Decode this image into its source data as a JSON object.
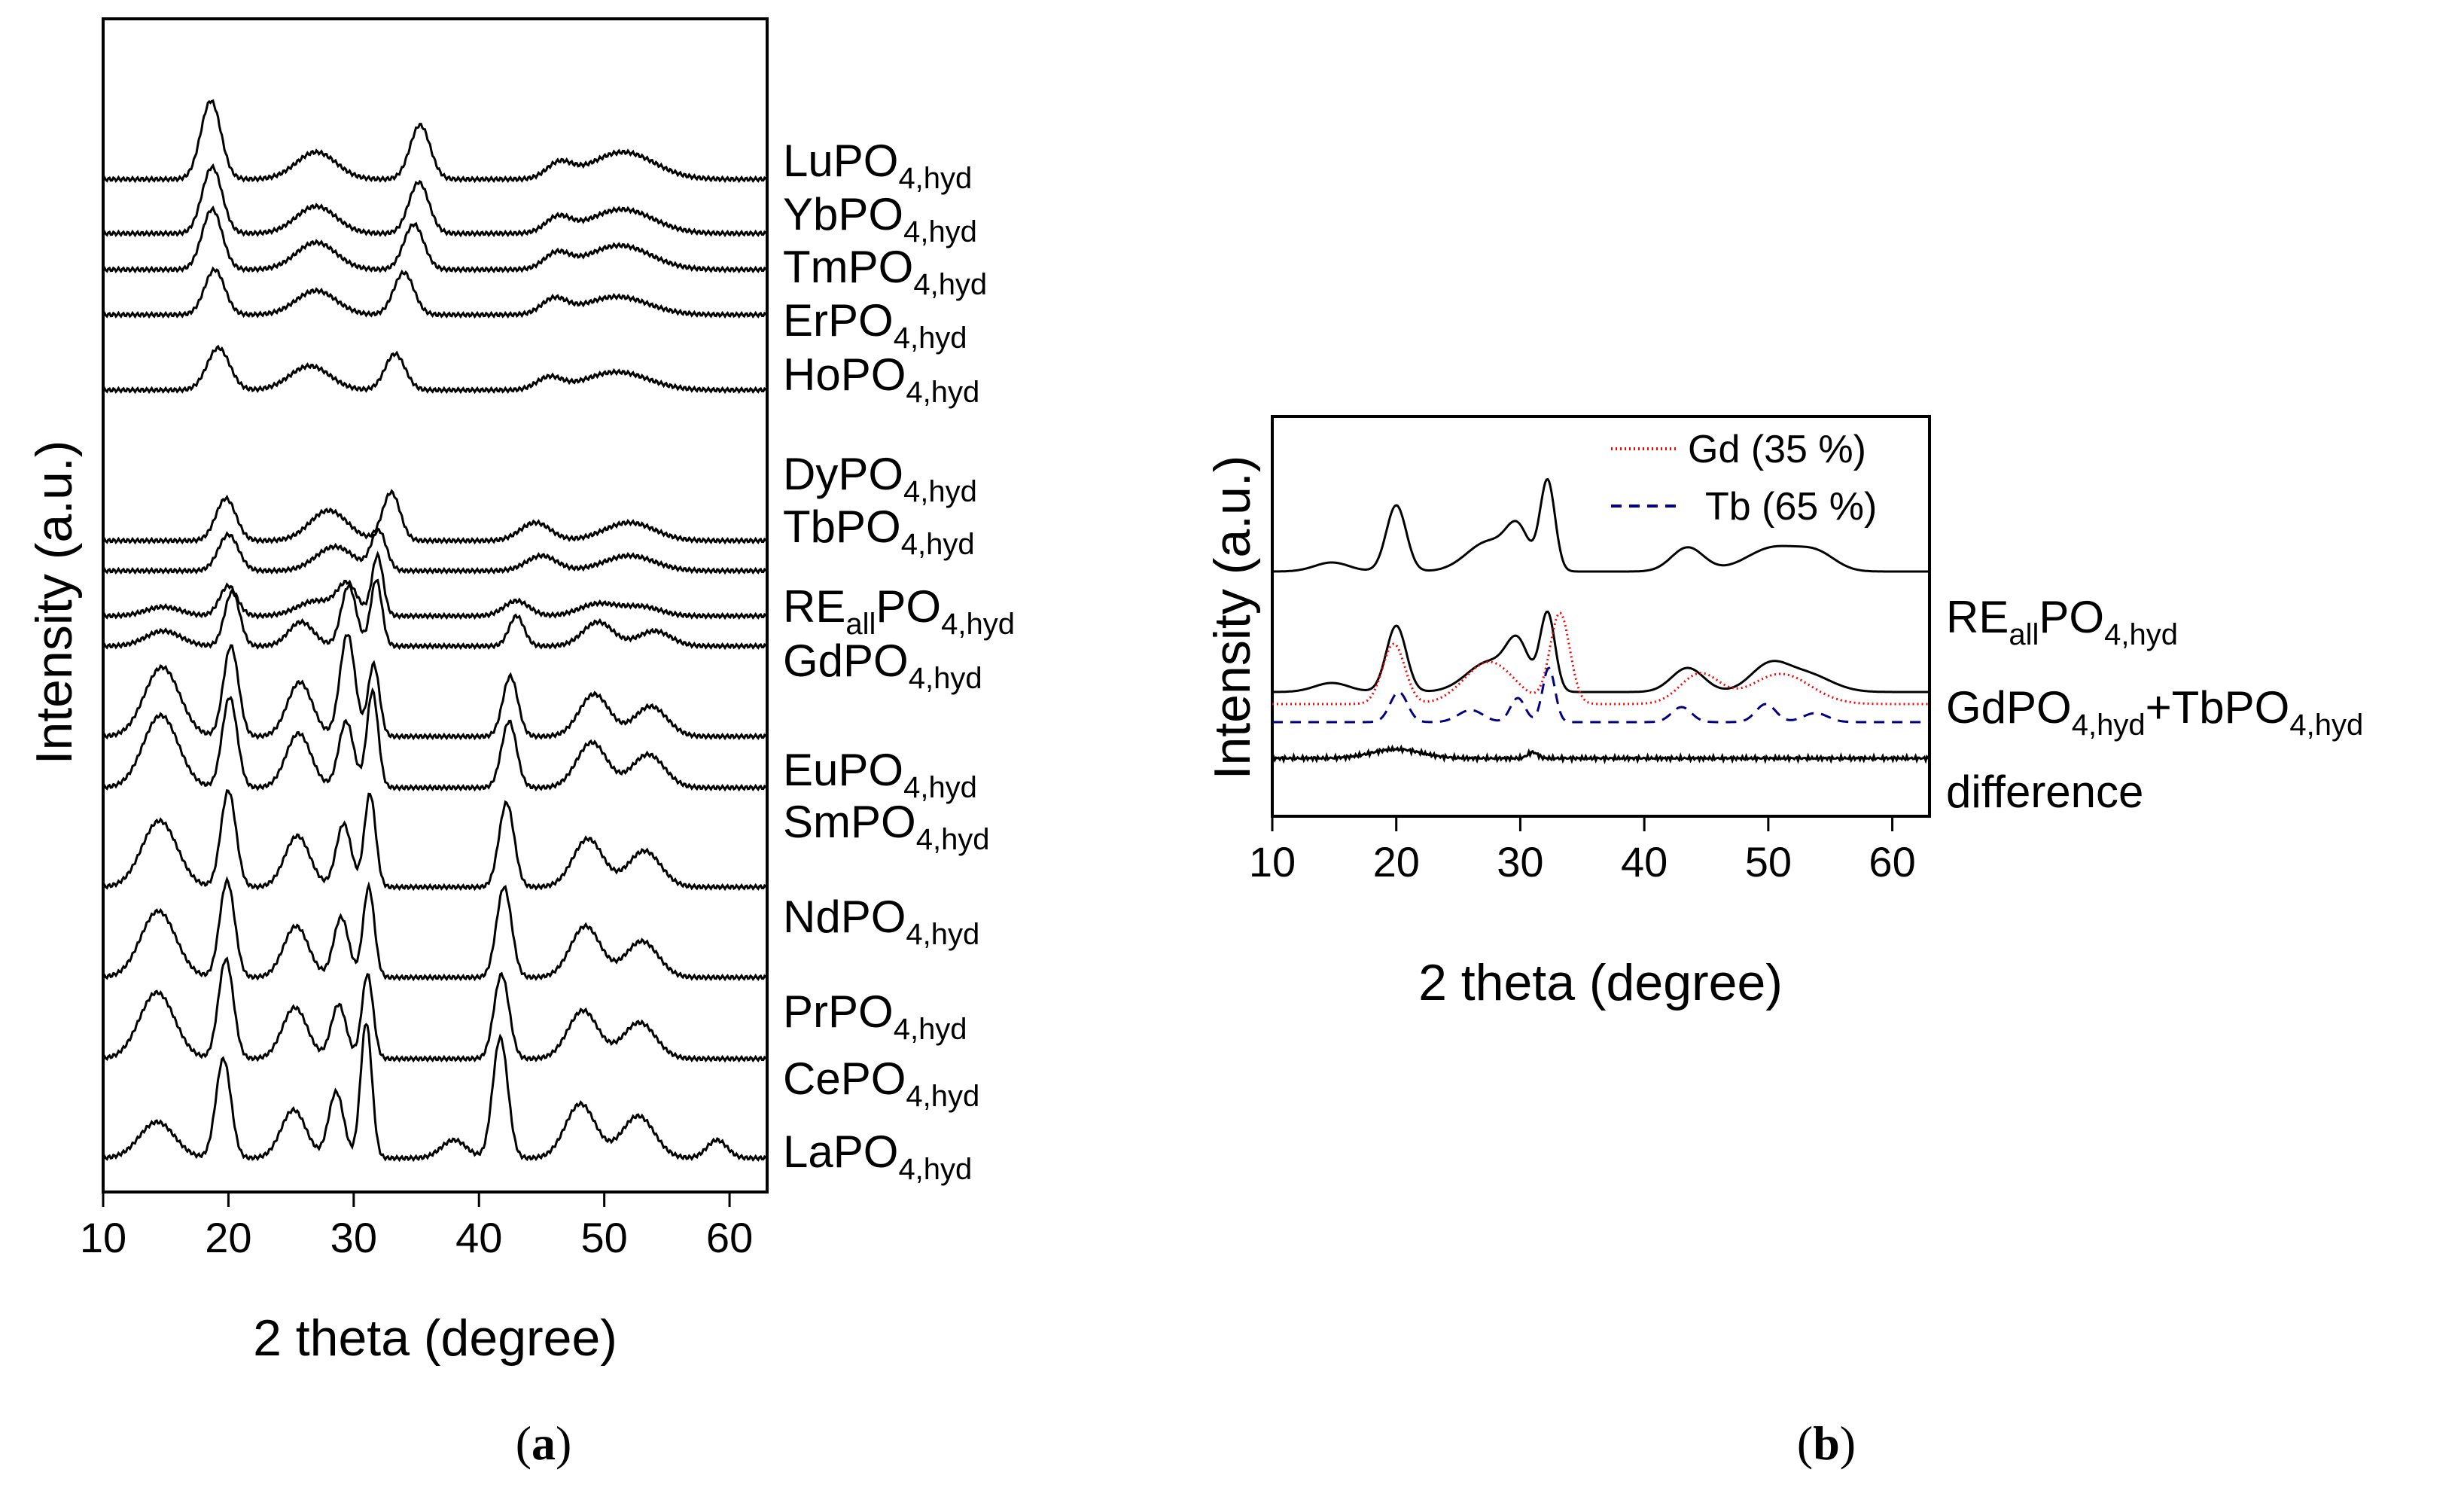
{
  "chart_data": [
    {
      "panel_label": "(a)",
      "panel_open": "(",
      "panel_letter": "a",
      "panel_close": ")",
      "type": "line",
      "xlabel": "2 theta (degree)",
      "ylabel": "Intensity (a.u.)",
      "xlim": [
        10,
        63
      ],
      "xticks": [
        "10",
        "20",
        "30",
        "40",
        "50",
        "60"
      ],
      "series": [
        {
          "name": "LaPO4,hyd",
          "base": "LaPO",
          "sub": "4,hyd",
          "pre": "",
          "offset": 0.0,
          "peaks": [
            [
              14.3,
              0.12,
              1.4
            ],
            [
              19.6,
              0.33,
              0.6
            ],
            [
              25.2,
              0.16,
              1.0
            ],
            [
              28.6,
              0.22,
              0.6
            ],
            [
              31.0,
              0.45,
              0.45
            ],
            [
              38.0,
              0.06,
              1.0
            ],
            [
              41.7,
              0.4,
              0.6
            ],
            [
              48.1,
              0.18,
              1.2
            ],
            [
              52.7,
              0.14,
              1.3
            ],
            [
              59.0,
              0.06,
              0.8
            ]
          ]
        },
        {
          "name": "CePO4,hyd",
          "base": "CePO",
          "sub": "4,hyd",
          "pre": "",
          "offset": 0.33,
          "peaks": [
            [
              14.3,
              0.22,
              1.4
            ],
            [
              19.8,
              0.33,
              0.6
            ],
            [
              25.3,
              0.17,
              1.0
            ],
            [
              28.8,
              0.18,
              0.6
            ],
            [
              31.1,
              0.28,
              0.45
            ],
            [
              41.8,
              0.28,
              0.6
            ],
            [
              48.3,
              0.16,
              1.2
            ],
            [
              52.8,
              0.12,
              1.3
            ]
          ]
        },
        {
          "name": "PrPO4,hyd",
          "base": "PrPO",
          "sub": "4,hyd",
          "pre": "",
          "offset": 0.6,
          "peaks": [
            [
              14.4,
              0.22,
              1.4
            ],
            [
              19.9,
              0.32,
              0.6
            ],
            [
              25.4,
              0.17,
              1.0
            ],
            [
              29.0,
              0.2,
              0.6
            ],
            [
              31.2,
              0.3,
              0.45
            ],
            [
              42.0,
              0.3,
              0.6
            ],
            [
              48.5,
              0.17,
              1.2
            ],
            [
              53.0,
              0.12,
              1.3
            ]
          ]
        },
        {
          "name": "NdPO4,hyd",
          "base": "NdPO",
          "sub": "4,hyd",
          "pre": "",
          "offset": 0.9,
          "peaks": [
            [
              14.5,
              0.22,
              1.4
            ],
            [
              20.0,
              0.32,
              0.6
            ],
            [
              25.5,
              0.17,
              1.0
            ],
            [
              29.2,
              0.21,
              0.6
            ],
            [
              31.3,
              0.31,
              0.45
            ],
            [
              42.2,
              0.28,
              0.6
            ],
            [
              48.7,
              0.16,
              1.2
            ],
            [
              53.2,
              0.12,
              1.3
            ]
          ]
        },
        {
          "name": "SmPO4,hyd",
          "base": "SmPO",
          "sub": "4,hyd",
          "pre": "",
          "offset": 1.23,
          "peaks": [
            [
              14.6,
              0.24,
              1.4
            ],
            [
              20.1,
              0.3,
              0.6
            ],
            [
              25.6,
              0.18,
              1.0
            ],
            [
              29.4,
              0.22,
              0.6
            ],
            [
              31.5,
              0.32,
              0.45
            ],
            [
              42.4,
              0.22,
              0.6
            ],
            [
              49.0,
              0.15,
              1.2
            ],
            [
              53.5,
              0.11,
              1.3
            ]
          ]
        },
        {
          "name": "EuPO4,hyd",
          "base": "EuPO",
          "sub": "4,hyd",
          "pre": "",
          "offset": 1.4,
          "peaks": [
            [
              14.7,
              0.23,
              1.4
            ],
            [
              20.2,
              0.3,
              0.6
            ],
            [
              25.7,
              0.18,
              1.0
            ],
            [
              29.5,
              0.34,
              0.6
            ],
            [
              31.6,
              0.24,
              0.45
            ],
            [
              42.5,
              0.2,
              0.6
            ],
            [
              49.2,
              0.14,
              1.2
            ],
            [
              53.7,
              0.1,
              1.3
            ]
          ]
        },
        {
          "name": "GdPO4,hyd",
          "base": "GdPO",
          "sub": "4,hyd",
          "pre": "",
          "offset": 1.7,
          "peaks": [
            [
              14.8,
              0.05,
              1.4
            ],
            [
              20.3,
              0.18,
              0.6
            ],
            [
              25.8,
              0.08,
              1.0
            ],
            [
              29.6,
              0.2,
              0.6
            ],
            [
              31.8,
              0.22,
              0.45
            ],
            [
              43.0,
              0.1,
              0.6
            ],
            [
              49.5,
              0.08,
              1.2
            ],
            [
              54.0,
              0.05,
              1.3
            ]
          ]
        },
        {
          "name": "REallPO4,hyd",
          "base": "RE",
          "sub": "4,hyd",
          "pre": "all",
          "mid": "PO",
          "offset": 1.8,
          "peaks": [
            [
              14.8,
              0.03,
              1.4
            ],
            [
              20.0,
              0.1,
              0.7
            ],
            [
              27.0,
              0.05,
              1.5
            ],
            [
              29.5,
              0.1,
              0.8
            ],
            [
              31.9,
              0.2,
              0.45
            ],
            [
              43.0,
              0.05,
              1.0
            ],
            [
              49.5,
              0.04,
              1.5
            ],
            [
              53.0,
              0.03,
              1.5
            ]
          ]
        },
        {
          "name": "TbPO4,hyd",
          "base": "TbPO",
          "sub": "4,hyd",
          "pre": "",
          "offset": 1.95,
          "peaks": [
            [
              20.0,
              0.12,
              0.8
            ],
            [
              28.5,
              0.08,
              1.5
            ],
            [
              32.0,
              0.13,
              0.6
            ],
            [
              45.0,
              0.05,
              1.2
            ],
            [
              52.0,
              0.05,
              2.0
            ]
          ]
        },
        {
          "name": "DyPO4,hyd",
          "base": "DyPO",
          "sub": "4,hyd",
          "pre": "",
          "offset": 2.05,
          "peaks": [
            [
              19.8,
              0.14,
              0.8
            ],
            [
              28.0,
              0.1,
              1.5
            ],
            [
              33.0,
              0.16,
              0.7
            ],
            [
              44.5,
              0.06,
              1.2
            ],
            [
              52.0,
              0.06,
              2.0
            ]
          ]
        },
        {
          "name": "HoPO4,hyd",
          "base": "HoPO",
          "sub": "4,hyd",
          "pre": "",
          "offset": 2.55,
          "peaks": [
            [
              19.2,
              0.14,
              0.9
            ],
            [
              26.5,
              0.08,
              1.6
            ],
            [
              33.3,
              0.12,
              0.8
            ],
            [
              45.6,
              0.04,
              1.0
            ],
            [
              51.0,
              0.06,
              2.5
            ]
          ]
        },
        {
          "name": "ErPO4,hyd",
          "base": "ErPO",
          "sub": "4,hyd",
          "pre": "",
          "offset": 2.8,
          "peaks": [
            [
              18.9,
              0.15,
              0.8
            ],
            [
              27.0,
              0.08,
              1.6
            ],
            [
              34.0,
              0.14,
              0.8
            ],
            [
              46.0,
              0.05,
              1.0
            ],
            [
              51.0,
              0.06,
              2.5
            ]
          ]
        },
        {
          "name": "TmPO4,hyd",
          "base": "TmPO",
          "sub": "4,hyd",
          "pre": "",
          "offset": 2.95,
          "peaks": [
            [
              18.7,
              0.2,
              0.8
            ],
            [
              27.0,
              0.09,
              1.6
            ],
            [
              34.8,
              0.15,
              0.8
            ],
            [
              46.2,
              0.05,
              1.0
            ],
            [
              51.2,
              0.08,
              2.5
            ]
          ]
        },
        {
          "name": "YbPO4,hyd",
          "base": "YbPO",
          "sub": "4,hyd",
          "pre": "",
          "offset": 3.07,
          "peaks": [
            [
              18.7,
              0.22,
              0.8
            ],
            [
              27.0,
              0.09,
              1.6
            ],
            [
              35.2,
              0.17,
              0.8
            ],
            [
              46.3,
              0.05,
              1.0
            ],
            [
              51.4,
              0.08,
              2.5
            ]
          ]
        },
        {
          "name": "LuPO4,hyd",
          "base": "LuPO",
          "sub": "4,hyd",
          "pre": "",
          "offset": 3.25,
          "peaks": [
            [
              18.6,
              0.26,
              0.8
            ],
            [
              27.0,
              0.09,
              1.6
            ],
            [
              35.3,
              0.18,
              0.8
            ],
            [
              46.4,
              0.05,
              1.0
            ],
            [
              51.5,
              0.09,
              2.5
            ]
          ]
        }
      ]
    },
    {
      "panel_label": "(b)",
      "panel_open": "(",
      "panel_letter": "b",
      "panel_close": ")",
      "type": "line",
      "xlabel": "2 theta (degree)",
      "ylabel": "Intensity (a.u.)",
      "xlim": [
        10,
        63
      ],
      "xticks": [
        "10",
        "20",
        "30",
        "40",
        "50",
        "60"
      ],
      "legend": [
        {
          "name": "Gd (35 %)",
          "color": "#ff0000",
          "style": "dotted"
        },
        {
          "name": "Tb (65 %)",
          "color": "#000080",
          "style": "dashed"
        }
      ],
      "row_labels": [
        {
          "name": "REallPO4,hyd",
          "parts": [
            "RE",
            "all",
            "PO",
            "4,hyd"
          ]
        },
        {
          "name": "GdPO4,hyd+TbPO4,hyd",
          "parts": [
            "GdPO",
            "4,hyd",
            "+TbPO",
            "4,hyd"
          ]
        },
        {
          "name": "difference",
          "parts": [
            "difference"
          ]
        }
      ],
      "series": [
        {
          "name": "REallPO4,hyd",
          "color": "#000000",
          "offset": 0.62,
          "peaks": [
            [
              14.8,
              0.03,
              1.4
            ],
            [
              20.0,
              0.22,
              0.8
            ],
            [
              27.5,
              0.1,
              1.8
            ],
            [
              29.8,
              0.12,
              0.9
            ],
            [
              32.2,
              0.3,
              0.6
            ],
            [
              43.5,
              0.08,
              1.3
            ],
            [
              50.5,
              0.08,
              2.2
            ],
            [
              54.0,
              0.05,
              1.5
            ]
          ]
        },
        {
          "name": "GdPO4,hyd+TbPO4,hyd",
          "color": "#000000",
          "offset": 0.22,
          "peaks": [
            [
              14.8,
              0.03,
              1.4
            ],
            [
              20.0,
              0.22,
              0.8
            ],
            [
              27.5,
              0.1,
              1.8
            ],
            [
              29.8,
              0.14,
              0.9
            ],
            [
              32.2,
              0.26,
              0.6
            ],
            [
              43.5,
              0.08,
              1.3
            ],
            [
              50.0,
              0.08,
              1.5
            ],
            [
              53.0,
              0.06,
              2.0
            ]
          ]
        },
        {
          "name": "Gd (35 %)",
          "color": "#ff0000",
          "offset": 0.18,
          "peaks": [
            [
              19.8,
              0.2,
              0.9
            ],
            [
              27.5,
              0.14,
              2.0
            ],
            [
              33.2,
              0.3,
              0.8
            ],
            [
              44.5,
              0.1,
              1.6
            ],
            [
              51.0,
              0.1,
              2.4
            ]
          ]
        },
        {
          "name": "Tb (65 %)",
          "color": "#000080",
          "offset": 0.12,
          "peaks": [
            [
              20.2,
              0.1,
              0.7
            ],
            [
              26.0,
              0.04,
              1.0
            ],
            [
              29.8,
              0.08,
              0.6
            ],
            [
              32.3,
              0.18,
              0.5
            ],
            [
              43.0,
              0.05,
              0.8
            ],
            [
              49.8,
              0.06,
              0.8
            ],
            [
              53.8,
              0.03,
              1.0
            ]
          ]
        },
        {
          "name": "difference",
          "color": "#000000",
          "offset": 0.0,
          "peaks": [
            [
              20.0,
              0.03,
              2.0
            ],
            [
              31.0,
              0.02,
              0.4
            ]
          ]
        }
      ]
    }
  ]
}
